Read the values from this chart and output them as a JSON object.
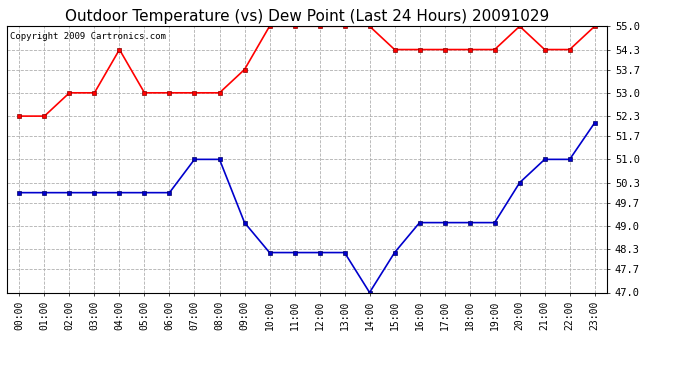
{
  "title": "Outdoor Temperature (vs) Dew Point (Last 24 Hours) 20091029",
  "copyright_text": "Copyright 2009 Cartronics.com",
  "hours": [
    "00:00",
    "01:00",
    "02:00",
    "03:00",
    "04:00",
    "05:00",
    "06:00",
    "07:00",
    "08:00",
    "09:00",
    "10:00",
    "11:00",
    "12:00",
    "13:00",
    "14:00",
    "15:00",
    "16:00",
    "17:00",
    "18:00",
    "19:00",
    "20:00",
    "21:00",
    "22:00",
    "23:00"
  ],
  "temp": [
    52.3,
    52.3,
    53.0,
    53.0,
    54.3,
    53.0,
    53.0,
    53.0,
    53.0,
    53.7,
    55.0,
    55.0,
    55.0,
    55.0,
    55.0,
    54.3,
    54.3,
    54.3,
    54.3,
    54.3,
    55.0,
    54.3,
    54.3,
    55.0
  ],
  "dew": [
    50.0,
    50.0,
    50.0,
    50.0,
    50.0,
    50.0,
    50.0,
    51.0,
    51.0,
    49.1,
    48.2,
    48.2,
    48.2,
    48.2,
    47.0,
    48.2,
    49.1,
    49.1,
    49.1,
    49.1,
    50.3,
    51.0,
    51.0,
    52.1
  ],
  "temp_color": "#ff0000",
  "dew_color": "#0000cc",
  "bg_color": "#ffffff",
  "grid_color": "#b0b0b0",
  "ylim_min": 47.0,
  "ylim_max": 55.0,
  "yticks": [
    47.0,
    47.7,
    48.3,
    49.0,
    49.7,
    50.3,
    51.0,
    51.7,
    52.3,
    53.0,
    53.7,
    54.3,
    55.0
  ],
  "title_fontsize": 11,
  "tick_fontsize": 7,
  "copyright_fontsize": 6.5,
  "marker": "s",
  "markersize": 3,
  "linewidth": 1.2
}
